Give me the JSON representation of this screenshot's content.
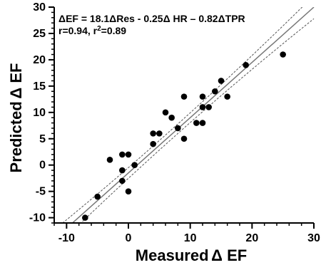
{
  "chart_data": {
    "type": "scatter",
    "xlabel": "Measured Δ EF",
    "ylabel": "Predicted Δ EF",
    "xlim": [
      -12,
      30
    ],
    "ylim": [
      -11,
      30
    ],
    "x_ticks": [
      -10,
      0,
      10,
      20,
      30
    ],
    "y_ticks": [
      -10,
      -5,
      0,
      5,
      10,
      15,
      20,
      25,
      30
    ],
    "grid": false,
    "points": [
      {
        "x": -7,
        "y": -10
      },
      {
        "x": -5,
        "y": -6
      },
      {
        "x": -3,
        "y": 1
      },
      {
        "x": -1,
        "y": -3
      },
      {
        "x": -1,
        "y": -1
      },
      {
        "x": -1,
        "y": 2
      },
      {
        "x": 0,
        "y": 2
      },
      {
        "x": 0,
        "y": -5
      },
      {
        "x": 1,
        "y": 0
      },
      {
        "x": 4,
        "y": 4
      },
      {
        "x": 4,
        "y": 6
      },
      {
        "x": 5,
        "y": 6
      },
      {
        "x": 6,
        "y": 10
      },
      {
        "x": 7,
        "y": 9
      },
      {
        "x": 8,
        "y": 7
      },
      {
        "x": 9,
        "y": 5
      },
      {
        "x": 9,
        "y": 13
      },
      {
        "x": 11,
        "y": 8
      },
      {
        "x": 12,
        "y": 8
      },
      {
        "x": 12,
        "y": 11
      },
      {
        "x": 12,
        "y": 13
      },
      {
        "x": 13,
        "y": 11
      },
      {
        "x": 14,
        "y": 14
      },
      {
        "x": 15,
        "y": 16
      },
      {
        "x": 16,
        "y": 13
      },
      {
        "x": 19,
        "y": 19
      },
      {
        "x": 25,
        "y": 21
      }
    ],
    "regression": {
      "slope": 1.05,
      "intercept": -1.5
    },
    "confidence_band": {
      "offset_low": 0.9,
      "offset_high": 2.2
    },
    "annotations": {
      "equation": "ΔEF = 18.1ΔRes - 0.25Δ HR – 0.82ΔTPR",
      "stats_prefix": "r=0.94, r",
      "stats_sup": "2",
      "stats_suffix": "=0.89"
    },
    "colors": {
      "points": "#000000",
      "regression": "#777777",
      "confidence": "#555555",
      "axes": "#000000"
    }
  }
}
